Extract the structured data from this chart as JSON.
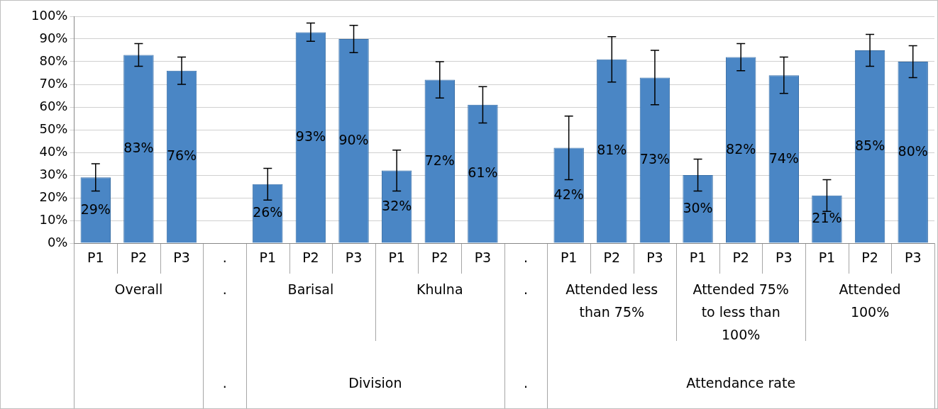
{
  "chart_data": {
    "type": "bar",
    "categories": [
      "P1",
      "P2",
      "P3",
      ".",
      "P1",
      "P2",
      "P3",
      "P1",
      "P2",
      "P3",
      ".",
      "P1",
      "P2",
      "P3",
      "P1",
      "P2",
      "P3",
      "P1",
      "P2",
      "P3"
    ],
    "values": [
      29,
      83,
      76,
      null,
      26,
      93,
      90,
      32,
      72,
      61,
      null,
      42,
      81,
      73,
      30,
      82,
      74,
      21,
      85,
      80
    ],
    "errors": [
      6,
      5,
      6,
      null,
      7,
      4,
      6,
      9,
      8,
      8,
      null,
      14,
      10,
      12,
      7,
      6,
      8,
      7,
      7,
      7
    ],
    "value_labels": [
      "29%",
      "83%",
      "76%",
      null,
      "26%",
      "93%",
      "90%",
      "32%",
      "72%",
      "61%",
      null,
      "42%",
      "81%",
      "73%",
      "30%",
      "82%",
      "74%",
      "21%",
      "85%",
      "80%"
    ],
    "color": "#4a86c5",
    "ylim": [
      0,
      100
    ],
    "yticks": [
      {
        "value": 0,
        "label": "0%"
      },
      {
        "value": 10,
        "label": "10%"
      },
      {
        "value": 20,
        "label": "20%"
      },
      {
        "value": 30,
        "label": "30%"
      },
      {
        "value": 40,
        "label": "40%"
      },
      {
        "value": 50,
        "label": "50%"
      },
      {
        "value": 60,
        "label": "60%"
      },
      {
        "value": 70,
        "label": "70%"
      },
      {
        "value": 80,
        "label": "80%"
      },
      {
        "value": 90,
        "label": "90%"
      },
      {
        "value": 100,
        "label": "100%"
      }
    ],
    "grid": "y",
    "annotations": [
      "Overall",
      ".",
      "Barisal",
      "Khulna",
      ".",
      "Attended less than 75%",
      "Attended 75% to less than 100%",
      "Attended 100%",
      ".",
      "Division",
      ".",
      "Attendance rate"
    ]
  }
}
